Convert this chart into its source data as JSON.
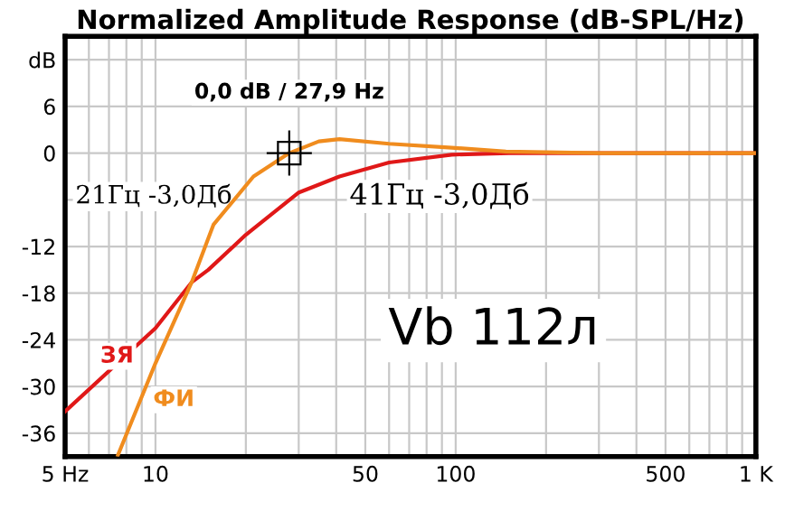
{
  "chart_data": {
    "type": "line",
    "title": "Normalized Amplitude Response (dB-SPL/Hz)",
    "log": "x",
    "grid": true,
    "xlim": [
      5,
      1000
    ],
    "ylim": [
      -39,
      15
    ],
    "xticks": [
      {
        "value": 5,
        "label": "5 Hz"
      },
      {
        "value": 6,
        "label": null
      },
      {
        "value": 7,
        "label": null
      },
      {
        "value": 8,
        "label": null
      },
      {
        "value": 9,
        "label": null
      },
      10,
      {
        "value": 20,
        "label": null
      },
      {
        "value": 30,
        "label": null
      },
      {
        "value": 40,
        "label": null
      },
      50,
      {
        "value": 60,
        "label": null
      },
      {
        "value": 70,
        "label": null
      },
      {
        "value": 80,
        "label": null
      },
      {
        "value": 90,
        "label": null
      },
      100,
      {
        "value": 200,
        "label": null
      },
      {
        "value": 300,
        "label": null
      },
      {
        "value": 400,
        "label": null
      },
      500,
      {
        "value": 600,
        "label": null
      },
      {
        "value": 700,
        "label": null
      },
      {
        "value": 800,
        "label": null
      },
      {
        "value": 900,
        "label": null
      },
      {
        "value": 1000,
        "label": "1 K"
      }
    ],
    "yticks": [
      -36,
      -30,
      -24,
      -18,
      -12,
      {
        "value": -6,
        "label": null
      },
      0,
      6,
      {
        "value": 12,
        "label": "dB"
      }
    ],
    "series": [
      {
        "name": "ЗЯ",
        "color": "#e01818",
        "x": [
          5,
          10,
          13.2,
          15,
          20,
          29.9,
          41,
          60,
          97,
          150,
          300,
          1000
        ],
        "values": [
          -33.2,
          -22.5,
          -16.6,
          -15,
          -10.5,
          -5.1,
          -3.0,
          -1.2,
          -0.2,
          0,
          0,
          0
        ]
      },
      {
        "name": "ФИ",
        "color": "#f08c1e",
        "x": [
          7.5,
          10,
          13.2,
          15.6,
          21.2,
          27.9,
          35,
          41,
          60,
          97,
          147,
          300,
          1000
        ],
        "values": [
          -38.8,
          -27,
          -16.6,
          -9.2,
          -3.0,
          0,
          1.5,
          1.8,
          1.2,
          0.7,
          0.2,
          0,
          0
        ]
      }
    ],
    "annotations": [
      {
        "text": "0,0 dB / 27,9 Hz",
        "x": 27.9,
        "y": 0
      },
      {
        "text": "21Гц -3,0Дб",
        "x": 21,
        "y": -3
      },
      {
        "text": "41Гц -3,0Дб",
        "x": 41,
        "y": -3
      },
      "Vb 112л"
    ]
  }
}
